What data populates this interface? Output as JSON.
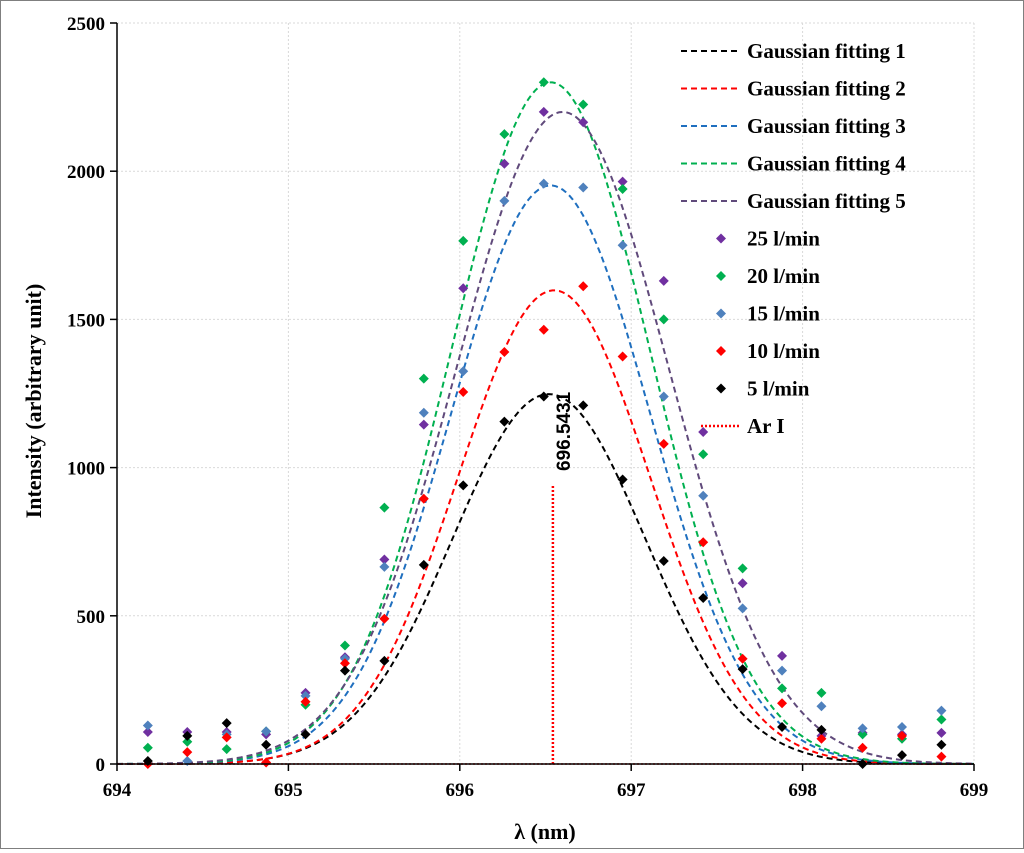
{
  "chart_data": {
    "type": "scatter",
    "xlabel": "λ (nm)",
    "ylabel": "Intensity (arbitrary unit)",
    "xlim": [
      694,
      699
    ],
    "ylim": [
      0,
      2500
    ],
    "xticks": [
      "694",
      "695",
      "696",
      "697",
      "698",
      "699"
    ],
    "yticks": [
      "0",
      "500",
      "1000",
      "1500",
      "2000",
      "2500"
    ],
    "grid": true,
    "legend_position": "top-right",
    "annotation": {
      "text": "696.5431",
      "x": 696.5431,
      "y": 1000
    },
    "fits": [
      {
        "name": "Gaussian fitting 1",
        "color": "#000000",
        "amplitude": 1248,
        "center": 696.52,
        "sigma": 0.565,
        "baseline": 0
      },
      {
        "name": "Gaussian fitting 2",
        "color": "#ff0000",
        "amplitude": 1598,
        "center": 696.55,
        "sigma": 0.56,
        "baseline": 0
      },
      {
        "name": "Gaussian fitting 3",
        "color": "#1f6fbf",
        "amplitude": 1952,
        "center": 696.53,
        "sigma": 0.58,
        "baseline": 0
      },
      {
        "name": "Gaussian fitting 4",
        "color": "#00b050",
        "amplitude": 2300,
        "center": 696.53,
        "sigma": 0.58,
        "baseline": 0
      },
      {
        "name": "Gaussian fitting 5",
        "color": "#604a7b",
        "amplitude": 2200,
        "center": 696.6,
        "sigma": 0.62,
        "baseline": 0
      }
    ],
    "series": [
      {
        "name": "25 l/min",
        "color": "#7030a0",
        "x": [
          694.18,
          694.41,
          694.64,
          694.87,
          695.1,
          695.33,
          695.56,
          695.79,
          696.02,
          696.26,
          696.49,
          696.72,
          696.95,
          697.19,
          697.42,
          697.65,
          697.88,
          698.11,
          698.35,
          698.58,
          698.81
        ],
        "y": [
          108,
          108,
          108,
          100,
          240,
          360,
          690,
          1145,
          1605,
          2025,
          2200,
          2165,
          1965,
          1630,
          1120,
          610,
          365,
          95,
          105,
          100,
          105
        ]
      },
      {
        "name": "20 l/min",
        "color": "#00b050",
        "x": [
          694.18,
          694.41,
          694.64,
          694.87,
          695.1,
          695.33,
          695.56,
          695.79,
          696.02,
          696.26,
          696.49,
          696.72,
          696.95,
          697.19,
          697.42,
          697.65,
          697.88,
          698.11,
          698.35,
          698.58,
          698.81
        ],
        "y": [
          55,
          75,
          50,
          110,
          200,
          400,
          865,
          1300,
          1765,
          2125,
          2300,
          2225,
          1940,
          1500,
          1045,
          660,
          255,
          240,
          100,
          85,
          150
        ]
      },
      {
        "name": "15 l/min",
        "color": "#4f81bd",
        "x": [
          694.18,
          694.41,
          694.64,
          694.87,
          695.1,
          695.33,
          695.56,
          695.79,
          696.02,
          696.26,
          696.49,
          696.72,
          696.95,
          697.19,
          697.42,
          697.65,
          697.88,
          698.11,
          698.35,
          698.58,
          698.81
        ],
        "y": [
          130,
          10,
          100,
          110,
          230,
          355,
          665,
          1185,
          1325,
          1900,
          1958,
          1945,
          1750,
          1240,
          905,
          525,
          315,
          195,
          120,
          125,
          180
        ]
      },
      {
        "name": "10 l/min",
        "color": "#ff0000",
        "x": [
          694.18,
          694.41,
          694.64,
          694.87,
          695.1,
          695.33,
          695.56,
          695.79,
          696.02,
          696.26,
          696.49,
          696.72,
          696.95,
          697.19,
          697.42,
          697.65,
          697.88,
          698.11,
          698.35,
          698.58,
          698.81
        ],
        "y": [
          0,
          40,
          90,
          5,
          210,
          340,
          490,
          895,
          1255,
          1390,
          1465,
          1612,
          1375,
          1080,
          748,
          355,
          205,
          85,
          55,
          95,
          25
        ]
      },
      {
        "name": "5  l/min",
        "color": "#000000",
        "x": [
          694.18,
          694.41,
          694.64,
          694.87,
          695.1,
          695.33,
          695.56,
          695.79,
          696.02,
          696.26,
          696.49,
          696.72,
          696.95,
          697.19,
          697.42,
          697.65,
          697.88,
          698.11,
          698.35,
          698.58,
          698.81
        ],
        "y": [
          10,
          95,
          138,
          65,
          100,
          315,
          348,
          672,
          940,
          1155,
          1240,
          1210,
          960,
          685,
          560,
          320,
          125,
          115,
          0,
          30,
          65
        ]
      }
    ],
    "reference_line": {
      "name": "Ar I",
      "color": "#ff0000",
      "x": 696.5431,
      "y_top": 940
    }
  },
  "legend": {
    "fits": [
      "Gaussian fitting 1",
      "Gaussian fitting 2",
      "Gaussian fitting 3",
      "Gaussian fitting 4",
      "Gaussian fitting 5"
    ],
    "points": [
      "25 l/min",
      "20 l/min",
      "15 l/min",
      "10 l/min",
      "5  l/min"
    ],
    "reference": "Ar I"
  }
}
